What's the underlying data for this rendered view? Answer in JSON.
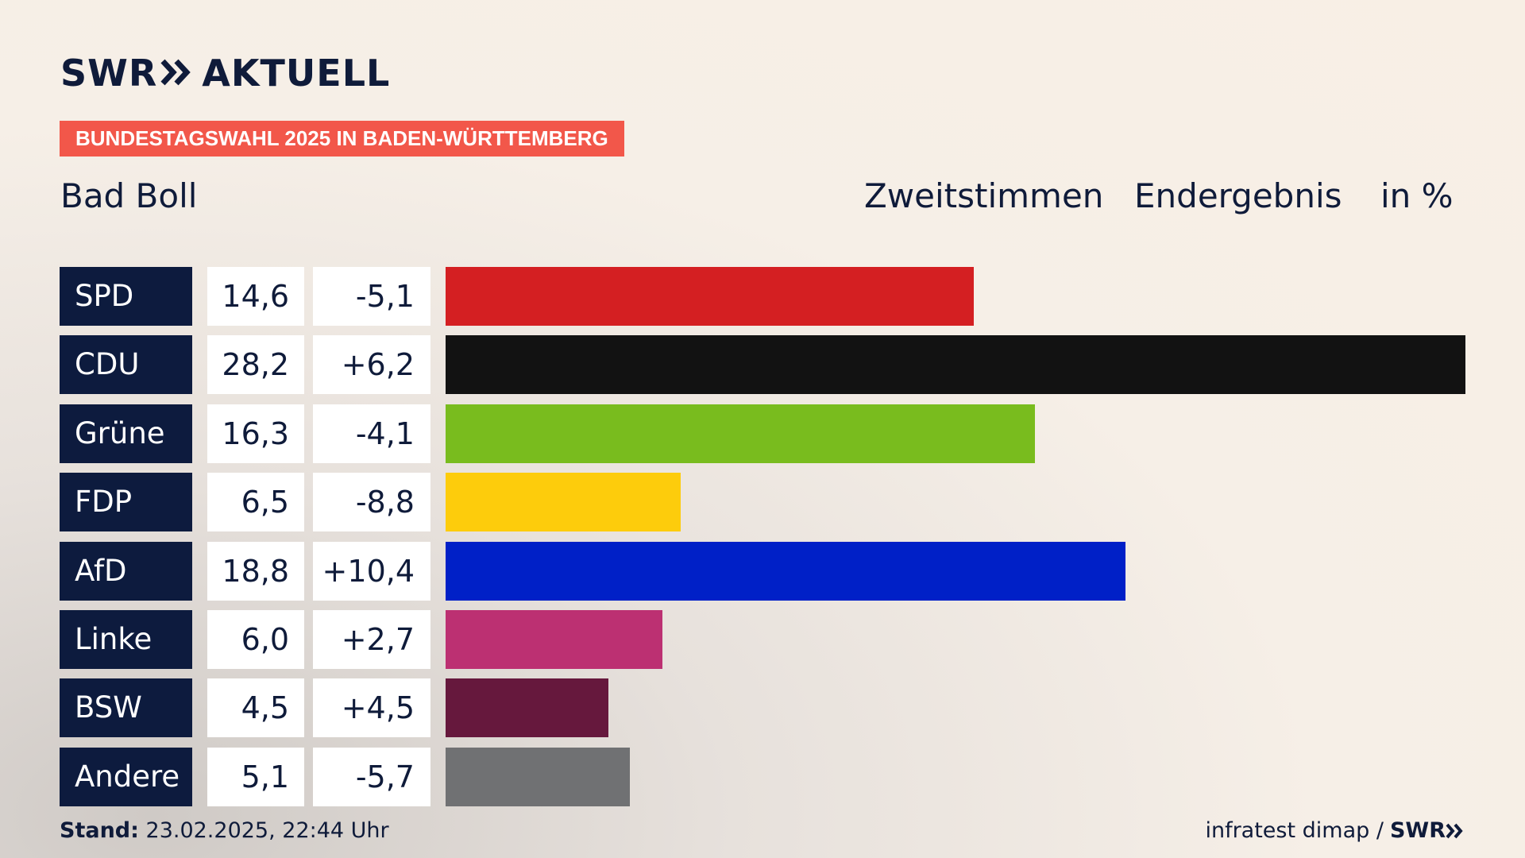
{
  "header": {
    "logo_text_left": "SWR",
    "logo_text_right": "AKTUELL",
    "banner": "BUNDESTAGSWAHL 2025 IN BADEN-WÜRTTEMBERG",
    "place": "Bad Boll",
    "col1": "Zweitstimmen",
    "col2": "Endergebnis",
    "col3": "in %"
  },
  "chart_data": {
    "type": "bar",
    "orientation": "horizontal",
    "categories": [
      "SPD",
      "CDU",
      "Grüne",
      "FDP",
      "AfD",
      "Linke",
      "BSW",
      "Andere"
    ],
    "values": [
      14.6,
      28.2,
      16.3,
      6.5,
      18.8,
      6.0,
      4.5,
      5.1
    ],
    "value_labels": [
      "14,6",
      "28,2",
      "16,3",
      "6,5",
      "18,8",
      "6,0",
      "4,5",
      "5,1"
    ],
    "diff_labels": [
      "-5,1",
      "+6,2",
      "-4,1",
      "-8,8",
      "+10,4",
      "+2,7",
      "+4,5",
      "-5,7"
    ],
    "colors": [
      "#d41f22",
      "#121212",
      "#79bc1e",
      "#fdcc0c",
      "#0020c7",
      "#bc3072",
      "#66183d",
      "#707173"
    ],
    "xlim": [
      0,
      28.2
    ]
  },
  "footer": {
    "stand_label": "Stand:",
    "stand_value": "23.02.2025, 22:44 Uhr",
    "source": "infratest dimap /",
    "source_logo": "SWR"
  }
}
